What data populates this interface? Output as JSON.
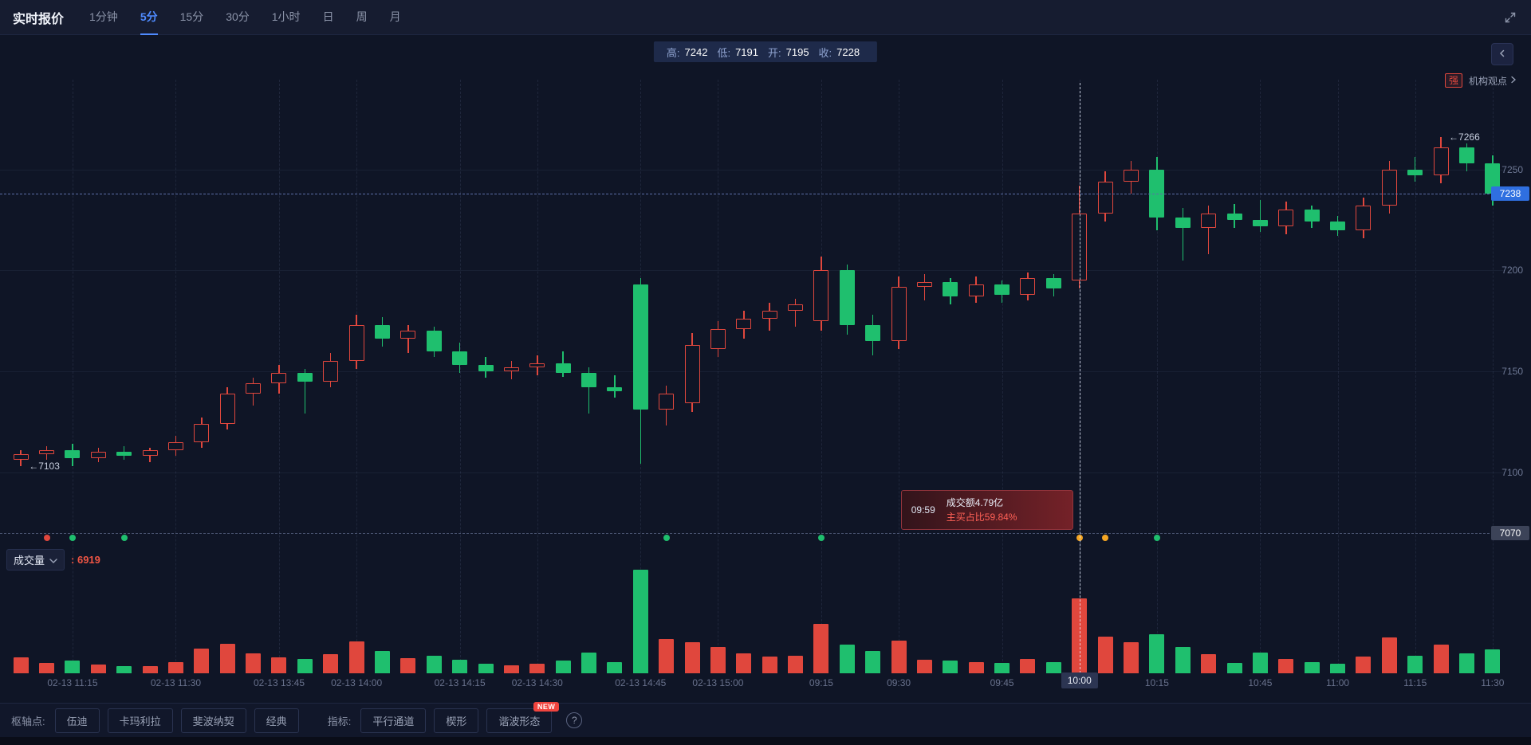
{
  "topbar": {
    "title": "实时报价",
    "timeframes": [
      {
        "label": "1分钟",
        "active": false
      },
      {
        "label": "5分",
        "active": true
      },
      {
        "label": "15分",
        "active": false
      },
      {
        "label": "30分",
        "active": false
      },
      {
        "label": "1小时",
        "active": false
      },
      {
        "label": "日",
        "active": false
      },
      {
        "label": "周",
        "active": false
      },
      {
        "label": "月",
        "active": false
      }
    ]
  },
  "ohlc_bar": {
    "high_label": "高:",
    "high": "7242",
    "low_label": "低:",
    "low": "7191",
    "open_label": "开:",
    "open": "7195",
    "close_label": "收:",
    "close": "7228"
  },
  "side": {
    "strength_badge": "强",
    "institution_link": "机构观点"
  },
  "tooltip": {
    "time": "09:59",
    "line1": "成交额4.79亿",
    "line2": "主买占比59.84%"
  },
  "volume_pane": {
    "label": "成交量",
    "value_prefix": ": ",
    "value": "6919"
  },
  "price_tags": {
    "current": "7238",
    "reference": "7070"
  },
  "toolbar": {
    "pivot_label": "枢轴点:",
    "pivot_buttons": [
      "伍迪",
      "卡玛利拉",
      "斐波纳契",
      "经典"
    ],
    "indicator_label": "指标:",
    "indicator_buttons": [
      {
        "label": "平行通道"
      },
      {
        "label": "楔形"
      },
      {
        "label": "谐波形态",
        "badge": "NEW"
      }
    ],
    "help_icon": "?"
  },
  "chart_data": {
    "type": "candlestick+volume",
    "symbol_session": "5-minute bars, 02-13 11:15 through next day 11:30",
    "price_axis_ticks": [
      7250,
      7200,
      7150,
      7100
    ],
    "current_price": 7238,
    "reference_price": 7070,
    "volume_max": 9600,
    "colors": {
      "up": "#e0473d",
      "down": "#1fbf6e",
      "accent": "#4f8bff",
      "price_tag": "#2f6fe0"
    },
    "time_labels": [
      "02-13 11:15",
      "02-13 11:30",
      "02-13 13:45",
      "02-13 14:00",
      "02-13 14:15",
      "02-13 14:30",
      "02-13 14:45",
      "02-13 15:00",
      "09:15",
      "09:30",
      "09:45",
      "10:00",
      "10:15",
      "10:45",
      "11:00",
      "11:15",
      "11:30"
    ],
    "label_candle_indices": [
      2,
      6,
      10,
      13,
      17,
      20,
      24,
      27,
      31,
      34,
      38,
      41,
      44,
      48,
      51,
      54,
      57
    ],
    "highlighted_label_index": 11,
    "crosshair_index": 41,
    "annotations": [
      {
        "text": "←7103",
        "index": 0,
        "price": 7103
      },
      {
        "text": "←7266",
        "index": 55,
        "price": 7266
      }
    ],
    "markers": [
      {
        "index": 1,
        "color": "#e0473d"
      },
      {
        "index": 2,
        "color": "#1fbf6e"
      },
      {
        "index": 4,
        "color": "#1fbf6e"
      },
      {
        "index": 25,
        "color": "#1fbf6e"
      },
      {
        "index": 31,
        "color": "#1fbf6e"
      },
      {
        "index": 41,
        "color": "#f5a623"
      },
      {
        "index": 42,
        "color": "#f5a623"
      },
      {
        "index": 44,
        "color": "#1fbf6e"
      }
    ],
    "candles_ohlcv": [
      [
        7106,
        7111,
        7103,
        7109,
        1500
      ],
      [
        7109,
        7113,
        7106,
        7111,
        950
      ],
      [
        7111,
        7114,
        7103,
        7107,
        1150
      ],
      [
        7107,
        7112,
        7105,
        7110,
        800
      ],
      [
        7110,
        7113,
        7106,
        7108,
        700
      ],
      [
        7108,
        7112,
        7105,
        7111,
        650
      ],
      [
        7111,
        7118,
        7108,
        7115,
        1050
      ],
      [
        7115,
        7127,
        7112,
        7124,
        2300
      ],
      [
        7124,
        7142,
        7121,
        7139,
        2700
      ],
      [
        7139,
        7147,
        7133,
        7144,
        1850
      ],
      [
        7144,
        7153,
        7139,
        7149,
        1500
      ],
      [
        7149,
        7151,
        7129,
        7145,
        1350
      ],
      [
        7145,
        7159,
        7142,
        7155,
        1750
      ],
      [
        7155,
        7178,
        7151,
        7173,
        2950
      ],
      [
        7173,
        7177,
        7162,
        7166,
        2050
      ],
      [
        7166,
        7173,
        7159,
        7170,
        1400
      ],
      [
        7170,
        7172,
        7157,
        7160,
        1650
      ],
      [
        7160,
        7164,
        7149,
        7153,
        1250
      ],
      [
        7153,
        7157,
        7147,
        7150,
        900
      ],
      [
        7150,
        7155,
        7146,
        7152,
        750
      ],
      [
        7152,
        7158,
        7148,
        7154,
        850
      ],
      [
        7154,
        7160,
        7147,
        7149,
        1150
      ],
      [
        7149,
        7152,
        7129,
        7142,
        1950
      ],
      [
        7142,
        7148,
        7137,
        7140,
        1050
      ],
      [
        7193,
        7196,
        7104,
        7131,
        9600
      ],
      [
        7131,
        7143,
        7123,
        7139,
        3200
      ],
      [
        7134,
        7169,
        7130,
        7163,
        2850
      ],
      [
        7161,
        7175,
        7157,
        7171,
        2450
      ],
      [
        7171,
        7180,
        7166,
        7176,
        1850
      ],
      [
        7176,
        7184,
        7170,
        7180,
        1550
      ],
      [
        7180,
        7186,
        7172,
        7183,
        1650
      ],
      [
        7175,
        7207,
        7170,
        7200,
        4600
      ],
      [
        7200,
        7203,
        7168,
        7173,
        2650
      ],
      [
        7173,
        7178,
        7158,
        7165,
        2050
      ],
      [
        7165,
        7197,
        7161,
        7192,
        3050
      ],
      [
        7192,
        7198,
        7185,
        7194,
        1250
      ],
      [
        7194,
        7196,
        7183,
        7187,
        1150
      ],
      [
        7187,
        7197,
        7184,
        7193,
        1050
      ],
      [
        7193,
        7195,
        7184,
        7188,
        950
      ],
      [
        7188,
        7199,
        7185,
        7196,
        1350
      ],
      [
        7196,
        7198,
        7187,
        7191,
        1050
      ],
      [
        7195,
        7242,
        7191,
        7228,
        6919
      ],
      [
        7228,
        7249,
        7224,
        7244,
        3400
      ],
      [
        7244,
        7254,
        7238,
        7250,
        2850
      ],
      [
        7250,
        7256,
        7220,
        7226,
        3650
      ],
      [
        7226,
        7231,
        7205,
        7221,
        2450
      ],
      [
        7221,
        7232,
        7208,
        7228,
        1750
      ],
      [
        7228,
        7233,
        7221,
        7225,
        950
      ],
      [
        7225,
        7235,
        7219,
        7222,
        1950
      ],
      [
        7222,
        7234,
        7218,
        7230,
        1350
      ],
      [
        7230,
        7232,
        7221,
        7224,
        1050
      ],
      [
        7224,
        7227,
        7217,
        7220,
        850
      ],
      [
        7220,
        7236,
        7216,
        7232,
        1550
      ],
      [
        7232,
        7254,
        7228,
        7250,
        3300
      ],
      [
        7250,
        7256,
        7244,
        7247,
        1650
      ],
      [
        7247,
        7266,
        7243,
        7261,
        2650
      ],
      [
        7261,
        7263,
        7249,
        7253,
        1850
      ],
      [
        7253,
        7257,
        7232,
        7238,
        2250
      ]
    ]
  }
}
